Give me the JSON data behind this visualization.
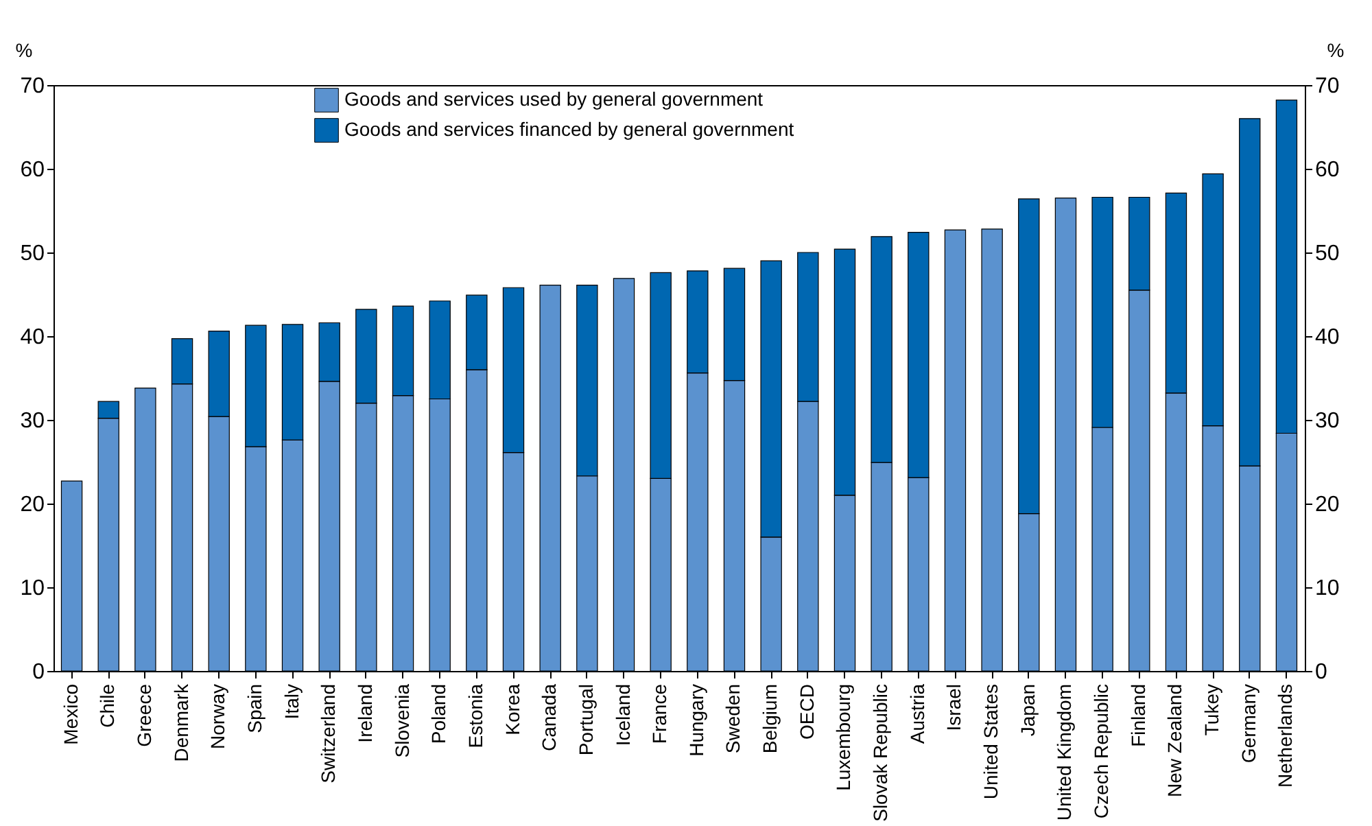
{
  "chart_data": {
    "type": "bar",
    "stacked": true,
    "ylabel": "%",
    "y2label": "%",
    "categories": [
      "Mexico",
      "Chile",
      "Greece",
      "Denmark",
      "Norway",
      "Spain",
      "Italy",
      "Switzerland",
      "Ireland",
      "Slovenia",
      "Poland",
      "Estonia",
      "Korea",
      "Canada",
      "Portugal",
      "Iceland",
      "France",
      "Hungary",
      "Sweden",
      "Belgium",
      "OECD",
      "Luxembourg",
      "Slovak Republic",
      "Austria",
      "Israel",
      "United States",
      "Japan",
      "United Kingdom",
      "Czech Republic",
      "Finland",
      "New Zealand",
      "Tukey",
      "Germany",
      "Netherlands"
    ],
    "series": [
      {
        "name": "Goods and services used by general government",
        "color": "#5b92cf",
        "values": [
          22.7,
          30.2,
          33.8,
          34.3,
          30.4,
          26.8,
          27.6,
          34.6,
          32.0,
          32.9,
          32.5,
          36.0,
          26.1,
          46.1,
          23.3,
          46.9,
          23.0,
          35.6,
          34.7,
          16.0,
          32.2,
          21.0,
          24.9,
          23.1,
          52.7,
          52.8,
          18.8,
          56.5,
          29.1,
          45.5,
          33.2,
          29.3,
          24.5,
          28.4
        ]
      },
      {
        "name": "Goods and services financed by general government",
        "color": "#0067b1",
        "values": [
          null,
          2.0,
          null,
          5.4,
          10.2,
          14.5,
          13.8,
          7.0,
          11.2,
          10.7,
          11.7,
          8.9,
          19.7,
          null,
          22.8,
          null,
          24.6,
          12.2,
          13.4,
          33.0,
          17.8,
          29.4,
          27.0,
          29.3,
          null,
          null,
          37.6,
          null,
          27.5,
          11.1,
          23.9,
          30.1,
          41.5,
          39.8
        ]
      }
    ],
    "ylim": [
      0,
      70
    ],
    "yticks": [
      0,
      10,
      20,
      30,
      40,
      50,
      60,
      70
    ],
    "y2lim": [
      0,
      70
    ],
    "y2ticks": [
      0,
      10,
      20,
      30,
      40,
      50,
      60,
      70
    ],
    "grid": false,
    "legend": "top"
  }
}
